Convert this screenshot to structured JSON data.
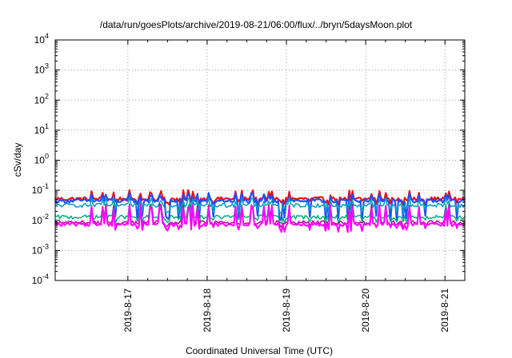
{
  "chart_data": {
    "type": "line",
    "title": "/data/run/goesPlots/archive/2019-08-21/06:00/flux/../bryn/5daysMoon.plot",
    "xlabel": "Coordinated Universal Time (UTC)",
    "ylabel": "cSv/day",
    "y_scale": "log",
    "ylim": [
      0.0001,
      10000
    ],
    "y_ticks": [
      {
        "base": "10",
        "exp": "4"
      },
      {
        "base": "10",
        "exp": "3"
      },
      {
        "base": "10",
        "exp": "2"
      },
      {
        "base": "10",
        "exp": "1"
      },
      {
        "base": "10",
        "exp": "0"
      },
      {
        "base": "10",
        "exp": "-1"
      },
      {
        "base": "10",
        "exp": "-2"
      },
      {
        "base": "10",
        "exp": "-3"
      },
      {
        "base": "10",
        "exp": "-4"
      }
    ],
    "xlim": [
      "2019-08-16T02:00",
      "2019-08-21T06:00"
    ],
    "x_ticks": [
      "2019-8-17",
      "2019-8-18",
      "2019-8-19",
      "2019-8-20",
      "2019-8-21"
    ],
    "grid": true,
    "series": [
      {
        "color": "#ff0000",
        "base": 0.052,
        "spike": 0.085,
        "drop": 0.04,
        "width": 2
      },
      {
        "color": "#1f4fff",
        "base": 0.045,
        "spike": 0.07,
        "drop": 0.012,
        "width": 2.2
      },
      {
        "color": "#00a0c0",
        "base": 0.032,
        "spike": 0.05,
        "drop": 0.02,
        "width": 1.5
      },
      {
        "color": "#00b080",
        "base": 0.013,
        "spike": 0.03,
        "drop": 0.009,
        "width": 1.5
      },
      {
        "color": "#c000a0",
        "base": 0.0085,
        "spike": 0.03,
        "drop": 0.007,
        "width": 1.5
      },
      {
        "color": "#ff00ff",
        "base": 0.0075,
        "spike": 0.028,
        "drop": 0.005,
        "width": 2
      }
    ]
  }
}
